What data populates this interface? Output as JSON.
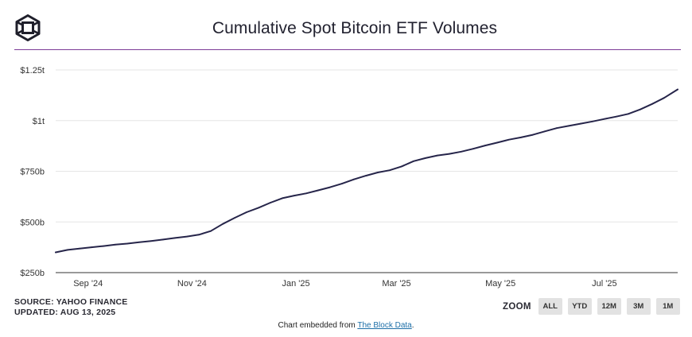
{
  "header": {
    "title": "Cumulative Spot Bitcoin ETF Volumes",
    "logo_icon": "cube-logo-icon"
  },
  "footer": {
    "source": "SOURCE: YAHOO FINANCE",
    "updated": "UPDATED: AUG 13, 2025",
    "embed_prefix": "Chart embedded from ",
    "embed_link": "The Block Data",
    "embed_suffix": "."
  },
  "zoom": {
    "label": "ZOOM",
    "buttons": [
      "ALL",
      "YTD",
      "12M",
      "3M",
      "1M"
    ]
  },
  "colors": {
    "line": "#26254a",
    "header_rule": "#7d3c98",
    "grid": "#e6e6e6"
  },
  "chart_data": {
    "type": "line",
    "title": "Cumulative Spot Bitcoin ETF Volumes",
    "xlabel": "",
    "ylabel": "",
    "grid": true,
    "legend": "none",
    "y_unit": "billion USD",
    "ylim": [
      250,
      1250
    ],
    "yticks": [
      250,
      500,
      750,
      1000,
      1250
    ],
    "ytick_labels": [
      "$250b",
      "$500b",
      "$750b",
      "$1t",
      "$1.25t"
    ],
    "xlim": [
      "2024-08-13",
      "2025-08-13"
    ],
    "xticks": [
      "2024-09-01",
      "2024-11-01",
      "2025-01-01",
      "2025-03-01",
      "2025-05-01",
      "2025-07-01"
    ],
    "xtick_labels": [
      "Sep '24",
      "Nov '24",
      "Jan '25",
      "Mar '25",
      "May '25",
      "Jul '25"
    ],
    "series": [
      {
        "x": [
          "2024-08-13",
          "2024-08-20",
          "2024-08-27",
          "2024-09-03",
          "2024-09-10",
          "2024-09-17",
          "2024-09-24",
          "2024-10-01",
          "2024-10-08",
          "2024-10-15",
          "2024-10-22",
          "2024-10-29",
          "2024-11-05",
          "2024-11-12",
          "2024-11-19",
          "2024-11-26",
          "2024-12-03",
          "2024-12-10",
          "2024-12-17",
          "2024-12-24",
          "2024-12-31",
          "2025-01-07",
          "2025-01-14",
          "2025-01-21",
          "2025-01-28",
          "2025-02-04",
          "2025-02-11",
          "2025-02-18",
          "2025-02-25",
          "2025-03-04",
          "2025-03-11",
          "2025-03-18",
          "2025-03-25",
          "2025-04-01",
          "2025-04-08",
          "2025-04-15",
          "2025-04-22",
          "2025-04-29",
          "2025-05-06",
          "2025-05-13",
          "2025-05-20",
          "2025-05-27",
          "2025-06-03",
          "2025-06-10",
          "2025-06-17",
          "2025-06-24",
          "2025-07-01",
          "2025-07-08",
          "2025-07-15",
          "2025-07-22",
          "2025-07-29",
          "2025-08-05",
          "2025-08-13"
        ],
        "y": [
          350,
          362,
          369,
          375,
          381,
          388,
          393,
          400,
          406,
          413,
          421,
          428,
          437,
          455,
          490,
          520,
          548,
          570,
          595,
          617,
          630,
          641,
          656,
          671,
          689,
          710,
          728,
          744,
          755,
          774,
          800,
          815,
          828,
          836,
          847,
          861,
          877,
          891,
          906,
          917,
          930,
          947,
          963,
          974,
          985,
          996,
          1008,
          1020,
          1033,
          1055,
          1082,
          1112,
          1154
        ]
      }
    ]
  }
}
